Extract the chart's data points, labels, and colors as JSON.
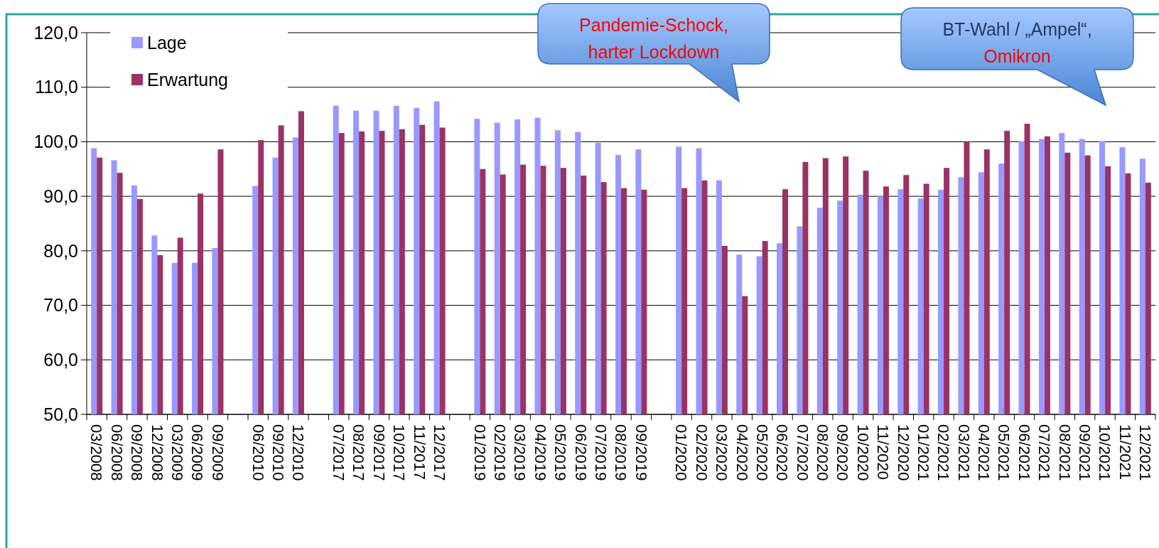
{
  "chart_data": {
    "type": "bar",
    "categories": [
      "03/2008",
      "06/2008",
      "09/2008",
      "12/2008",
      "03/2009",
      "06/2009",
      "09/2009",
      null,
      "06/2010",
      "09/2010",
      "12/2010",
      null,
      "07/2017",
      "08/2017",
      "09/2017",
      "10/2017",
      "11/2017",
      "12/2017",
      null,
      "01/2019",
      "02/2019",
      "03/2019",
      "04/2019",
      "05/2019",
      "06/2019",
      "07/2019",
      "08/2019",
      "09/2019",
      null,
      "01/2020",
      "02/2020",
      "03/2020",
      "04/2020",
      "05/2020",
      "06/2020",
      "07/2020",
      "08/2020",
      "09/2020",
      "10/2020",
      "11/2020",
      "12/2020",
      "01/2021",
      "02/2021",
      "03/2021",
      "04/2021",
      "05/2021",
      "06/2021",
      "07/2021",
      "08/2021",
      "09/2021",
      "10/2021",
      "11/2021",
      "12/2021"
    ],
    "series": [
      {
        "name": "Lage",
        "color": "#9999ff",
        "values": [
          98.8,
          96.6,
          92.0,
          82.8,
          77.8,
          77.8,
          80.5,
          null,
          91.9,
          97.1,
          100.8,
          null,
          106.6,
          105.7,
          105.7,
          106.6,
          106.2,
          107.4,
          null,
          104.2,
          103.5,
          104.1,
          104.4,
          102.1,
          101.8,
          99.8,
          97.6,
          98.6,
          null,
          99.1,
          98.8,
          92.9,
          79.3,
          79.0,
          81.4,
          84.5,
          87.9,
          89.2,
          90.3,
          90.0,
          91.3,
          89.6,
          91.2,
          93.5,
          94.4,
          96.0,
          100.1,
          100.5,
          101.6,
          100.5,
          100.1,
          99.0,
          96.9
        ]
      },
      {
        "name": "Erwartung",
        "color": "#993366",
        "values": [
          97.1,
          94.3,
          89.5,
          79.2,
          82.4,
          90.5,
          98.6,
          null,
          100.3,
          103.0,
          105.6,
          null,
          101.6,
          101.9,
          102.0,
          102.3,
          103.1,
          102.6,
          null,
          95.0,
          94.0,
          95.8,
          95.6,
          95.2,
          93.8,
          92.6,
          91.5,
          91.2,
          null,
          91.5,
          92.9,
          80.9,
          71.7,
          81.8,
          91.3,
          96.3,
          97.0,
          97.3,
          94.7,
          91.8,
          93.9,
          92.3,
          95.2,
          100.0,
          98.6,
          102.0,
          103.3,
          101.0,
          98.0,
          97.5,
          95.5,
          94.2,
          92.5
        ]
      }
    ],
    "ylim": [
      50,
      120
    ],
    "yticks": [
      {
        "value": 50,
        "label": "50,0"
      },
      {
        "value": 60,
        "label": "60,0"
      },
      {
        "value": 70,
        "label": "70,0"
      },
      {
        "value": 80,
        "label": "80,0"
      },
      {
        "value": 90,
        "label": "90,0"
      },
      {
        "value": 100,
        "label": "100,0"
      },
      {
        "value": 110,
        "label": "110,0"
      },
      {
        "value": 120,
        "label": "120,0"
      }
    ],
    "grid": "y",
    "legend": "top left",
    "annotations": [
      "Pandemie-Schock,\nharter Lockdown",
      "BT-Wahl / „Ampel“,\nOmikron"
    ]
  }
}
